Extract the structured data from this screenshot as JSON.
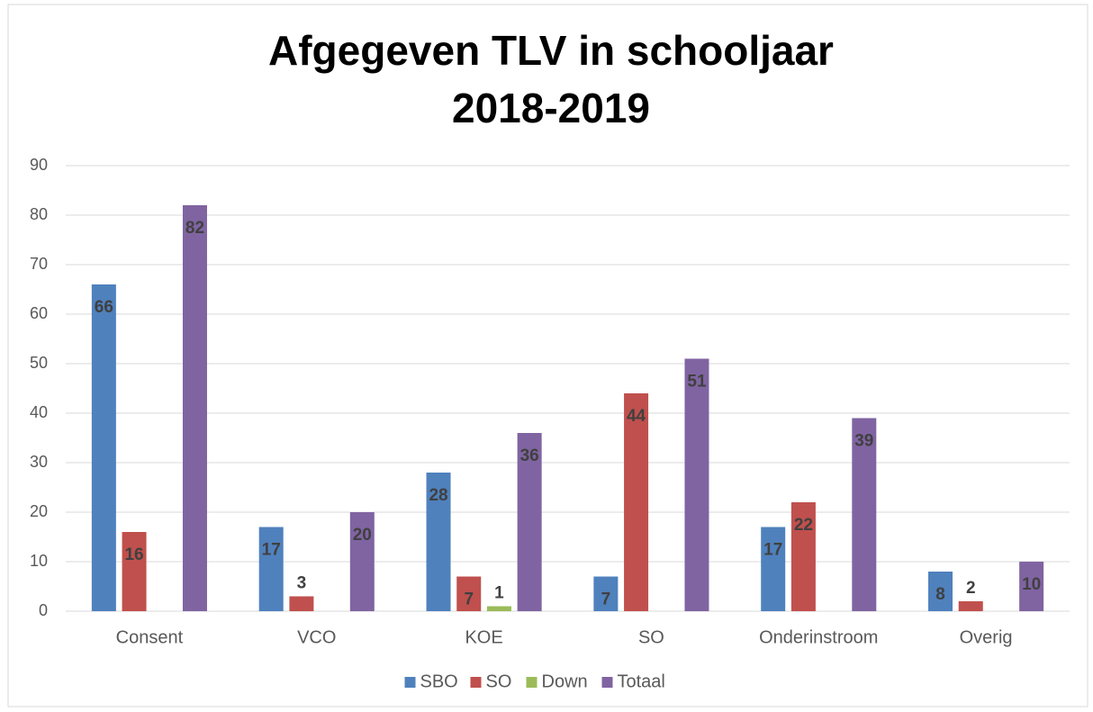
{
  "chart_data": {
    "type": "bar",
    "title": [
      "Afgegeven TLV in schooljaar",
      "2018-2019"
    ],
    "categories": [
      "Consent",
      "VCO",
      "KOE",
      "SO",
      "Onderinstroom",
      "Overig"
    ],
    "series": [
      {
        "name": "SBO",
        "color": "#4f81bd",
        "values": [
          66,
          17,
          28,
          7,
          17,
          8
        ]
      },
      {
        "name": "SO",
        "color": "#c0504d",
        "values": [
          16,
          3,
          7,
          44,
          22,
          2
        ]
      },
      {
        "name": "Down",
        "color": "#9bbb59",
        "values": [
          null,
          null,
          1,
          null,
          null,
          null
        ]
      },
      {
        "name": "Totaal",
        "color": "#8064a2",
        "values": [
          82,
          20,
          36,
          51,
          39,
          10
        ]
      }
    ],
    "ylim": [
      0,
      90
    ],
    "yticks": [
      0,
      10,
      20,
      30,
      40,
      50,
      60,
      70,
      80,
      90
    ],
    "grid": true,
    "legend": "bottom"
  }
}
